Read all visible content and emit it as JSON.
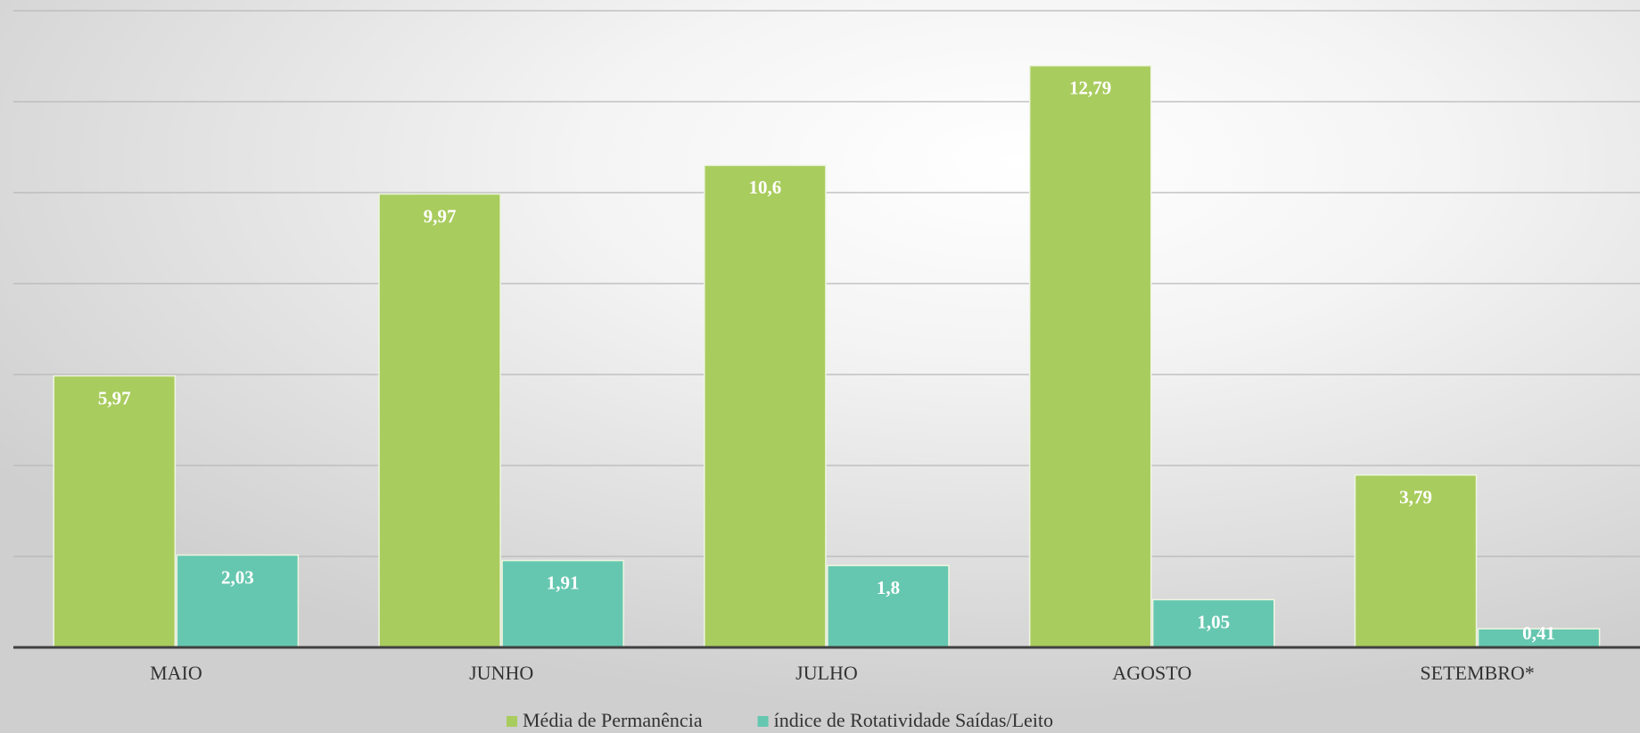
{
  "chart_data": {
    "type": "bar",
    "categories": [
      "MAIO",
      "JUNHO",
      "JULHO",
      "AGOSTO",
      "SETEMBRO*"
    ],
    "series": [
      {
        "name": "Média de Permanência",
        "color": "#a9cc5e",
        "values": [
          5.97,
          9.97,
          10.6,
          12.79,
          3.79
        ],
        "value_labels": [
          "5,97",
          "9,97",
          "10,6",
          "12,79",
          "3,79"
        ]
      },
      {
        "name": "índice de Rotatividade Saídas/Leito",
        "color": "#66c7b0",
        "values": [
          2.03,
          1.91,
          1.8,
          1.05,
          0.41
        ],
        "value_labels": [
          "2,03",
          "1,91",
          "1,8",
          "1,05",
          "0,41"
        ]
      }
    ],
    "ylim": [
      0,
      14
    ],
    "yticks": [
      0,
      2,
      4,
      6,
      8,
      10,
      12,
      14
    ],
    "grid": true,
    "legend": "bottom"
  }
}
